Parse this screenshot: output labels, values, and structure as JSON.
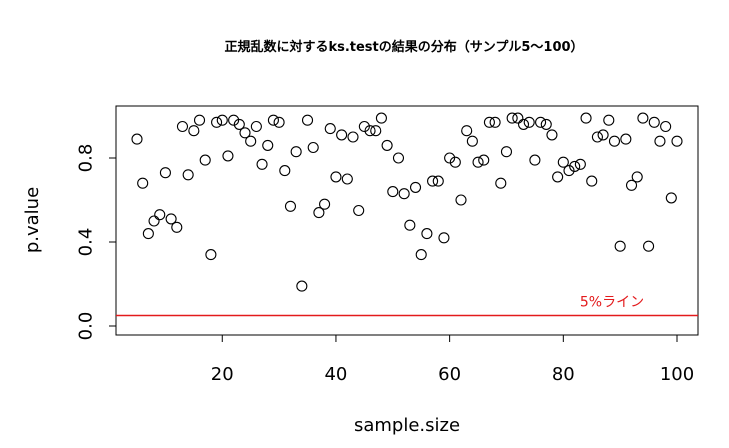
{
  "chart_data": {
    "type": "scatter",
    "title": "正規乱数に対するks.testの結果の分布（サンプル5〜100）",
    "xlabel": "sample.size",
    "ylabel": "p.value",
    "xlim": [
      5,
      100
    ],
    "ylim": [
      0,
      1
    ],
    "x_ticks": [
      20,
      40,
      60,
      80,
      100
    ],
    "y_ticks": [
      0.0,
      0.4,
      0.8
    ],
    "x_tick_labels": [
      "20",
      "40",
      "60",
      "80",
      "100"
    ],
    "y_tick_labels": [
      "0.0",
      "0.4",
      "0.8"
    ],
    "grid": false,
    "point_marker": "open-circle",
    "point_color": "#000000",
    "reference_line": {
      "y": 0.05,
      "color": "#e31a1c",
      "label": "5%ライン"
    },
    "x": [
      5,
      6,
      7,
      8,
      9,
      10,
      11,
      12,
      13,
      14,
      15,
      16,
      17,
      18,
      19,
      20,
      21,
      22,
      23,
      24,
      25,
      26,
      27,
      28,
      29,
      30,
      31,
      32,
      33,
      34,
      35,
      36,
      37,
      38,
      39,
      40,
      41,
      42,
      43,
      44,
      45,
      46,
      47,
      48,
      49,
      50,
      51,
      52,
      53,
      54,
      55,
      56,
      57,
      58,
      59,
      60,
      61,
      62,
      63,
      64,
      65,
      66,
      67,
      68,
      69,
      70,
      71,
      72,
      73,
      74,
      75,
      76,
      77,
      78,
      79,
      80,
      81,
      82,
      83,
      84,
      85,
      86,
      87,
      88,
      89,
      90,
      91,
      92,
      93,
      94,
      95,
      96,
      97,
      98,
      99,
      100
    ],
    "y": [
      0.89,
      0.68,
      0.44,
      0.5,
      0.53,
      0.73,
      0.51,
      0.47,
      0.95,
      0.72,
      0.93,
      0.98,
      0.79,
      0.34,
      0.97,
      0.98,
      0.81,
      0.98,
      0.96,
      0.92,
      0.88,
      0.95,
      0.77,
      0.86,
      0.98,
      0.97,
      0.74,
      0.57,
      0.83,
      0.19,
      0.98,
      0.85,
      0.54,
      0.58,
      0.94,
      0.71,
      0.91,
      0.7,
      0.9,
      0.55,
      0.95,
      0.93,
      0.93,
      0.99,
      0.86,
      0.64,
      0.8,
      0.63,
      0.48,
      0.66,
      0.34,
      0.44,
      0.69,
      0.69,
      0.42,
      0.8,
      0.78,
      0.6,
      0.93,
      0.88,
      0.78,
      0.79,
      0.97,
      0.97,
      0.68,
      0.83,
      0.99,
      0.99,
      0.96,
      0.97,
      0.79,
      0.97,
      0.96,
      0.91,
      0.71,
      0.78,
      0.74,
      0.76,
      0.77,
      0.99,
      0.69,
      0.9,
      0.91,
      0.98,
      0.88,
      0.38,
      0.89,
      0.67,
      0.71,
      0.99,
      0.38,
      0.97,
      0.88,
      0.95,
      0.61,
      0.88
    ]
  }
}
